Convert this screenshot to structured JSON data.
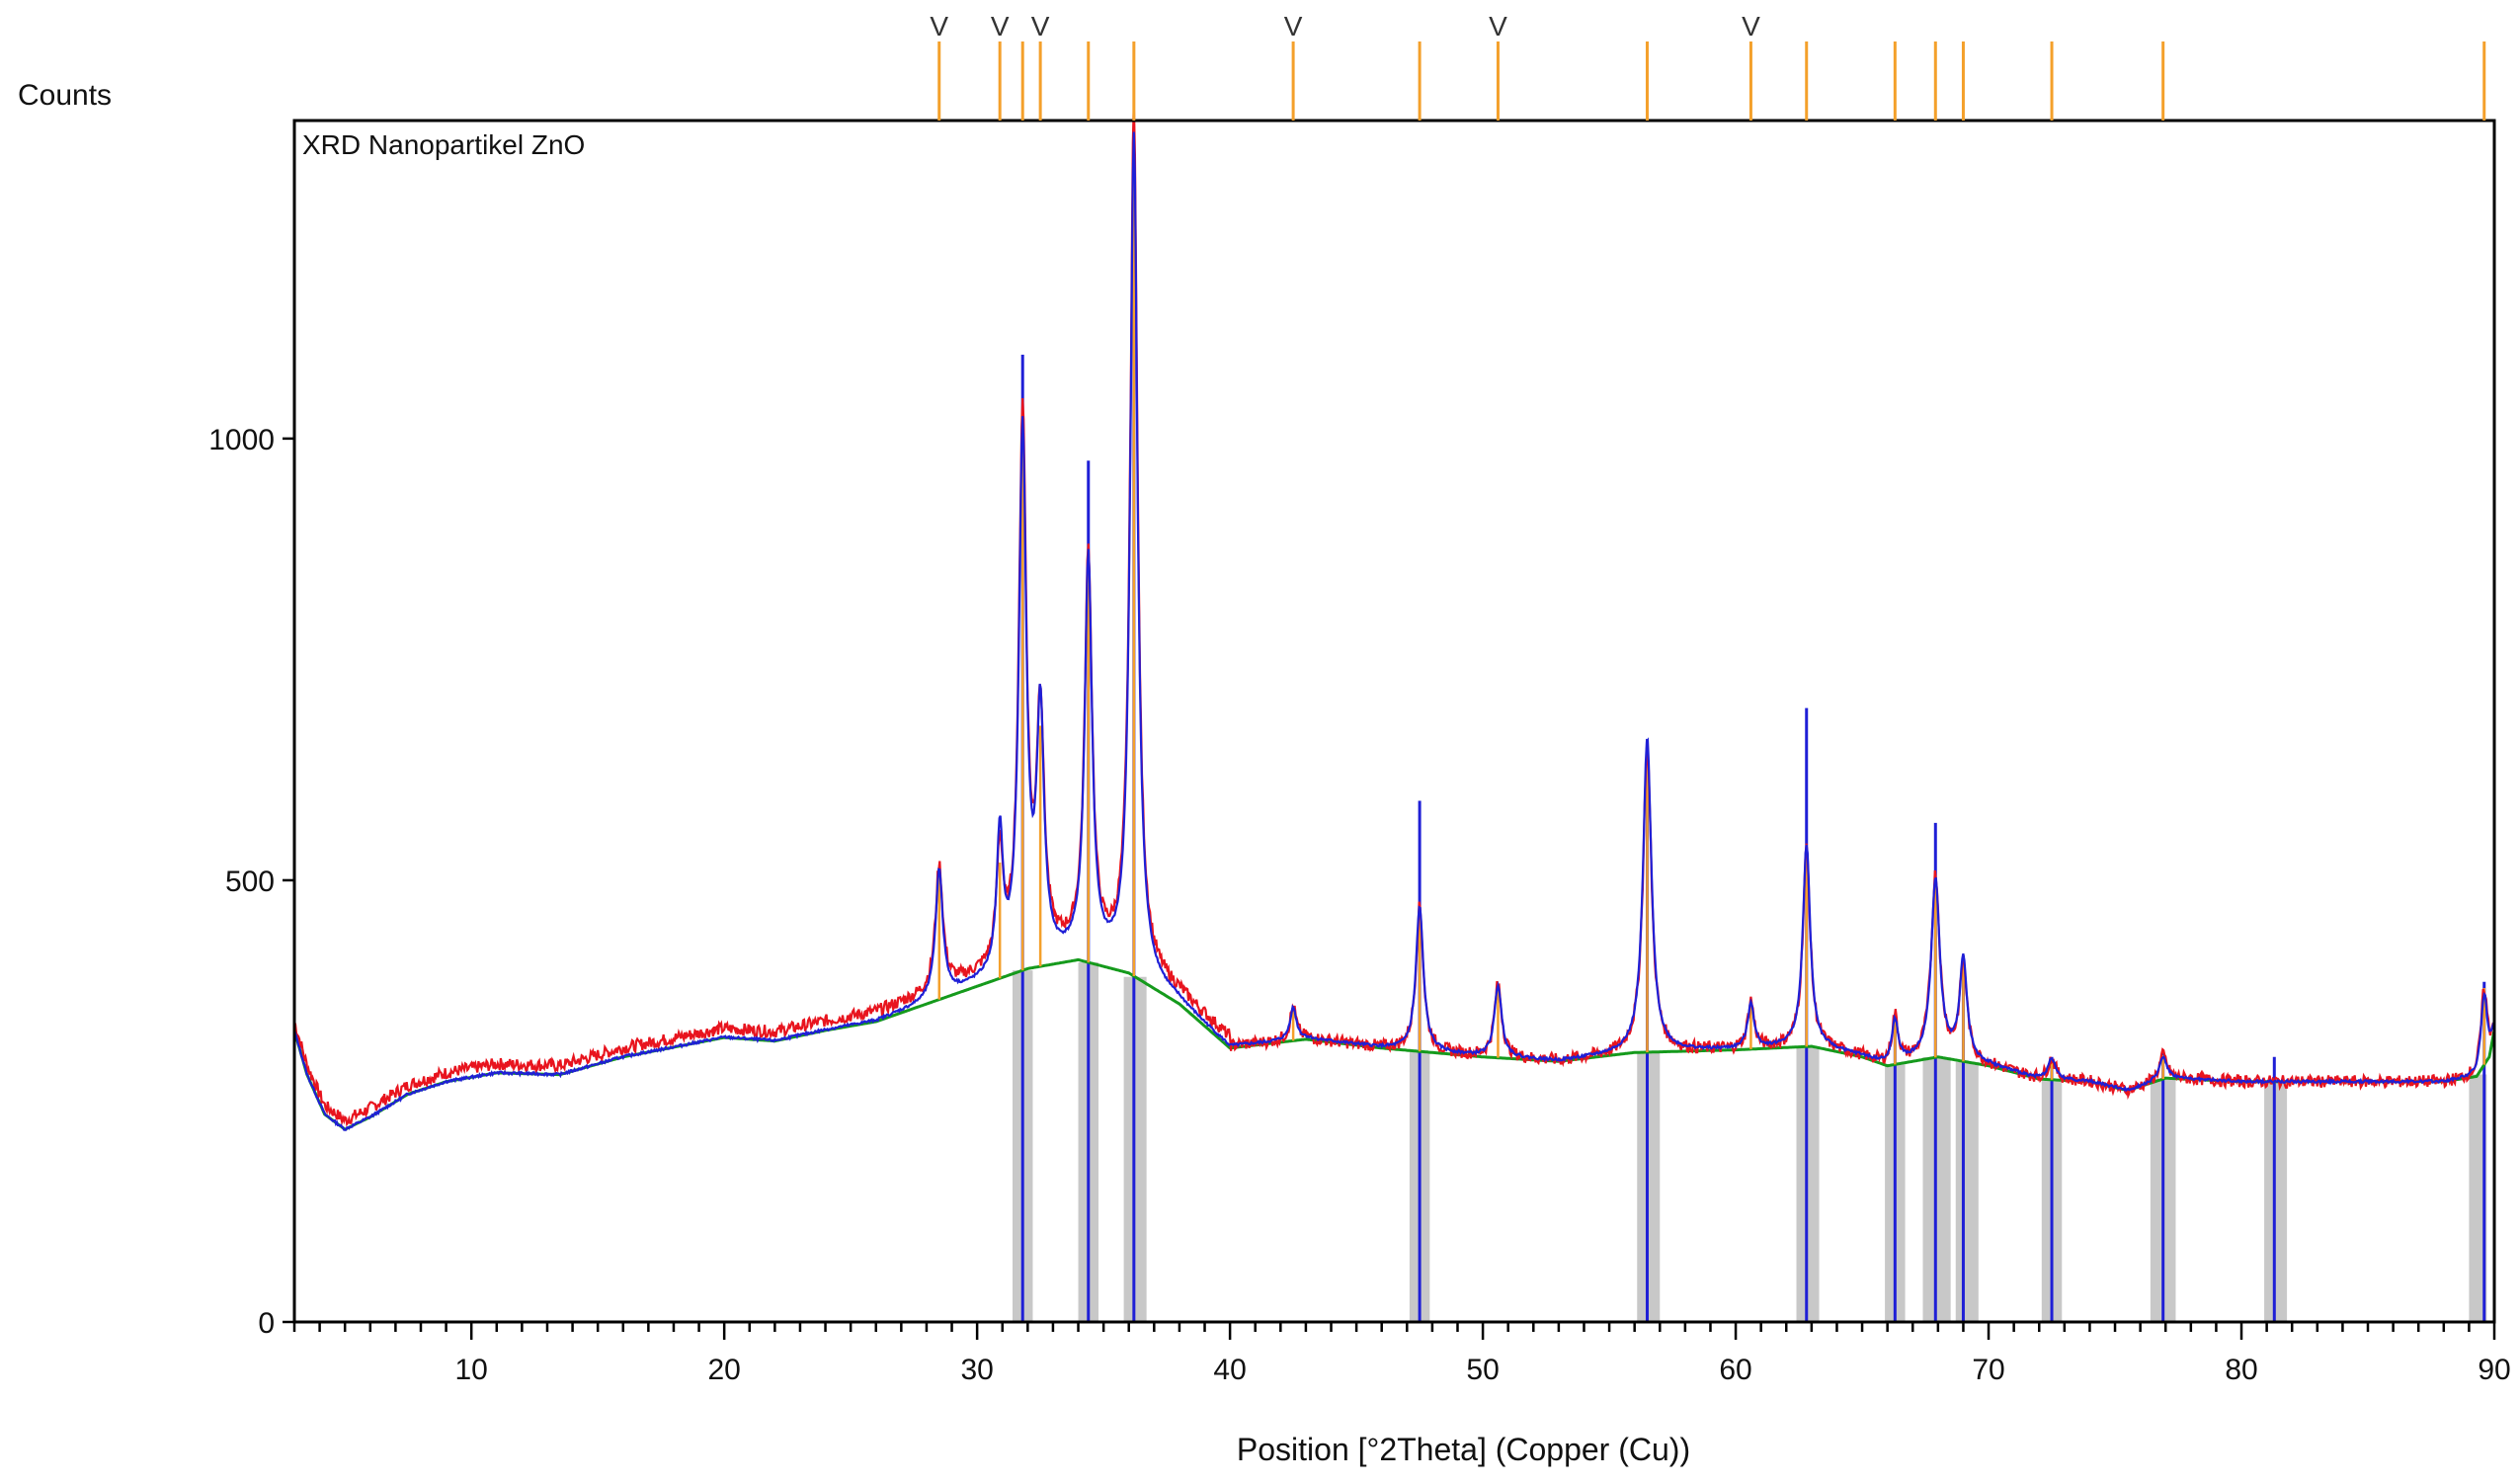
{
  "chart_data": {
    "type": "line",
    "title": "XRD Nanopartikel ZnO",
    "ylabel": "Counts",
    "xlabel": "Position [°2Theta] (Copper (Cu))",
    "xlim": [
      3,
      90
    ],
    "ylim": [
      0,
      1360
    ],
    "x_ticks": [
      10,
      20,
      30,
      40,
      50,
      60,
      70,
      80,
      90
    ],
    "y_ticks": [
      0,
      500,
      1000
    ],
    "colors": {
      "observed": "#e8141e",
      "calculated": "#1f1fd6",
      "background": "#159a1c",
      "peak_marker": "#f4a02b",
      "peak_band": "#c8c8c8",
      "reference_stick": "#1f1fd6"
    },
    "background_curve": [
      [
        3.0,
        330
      ],
      [
        3.5,
        280
      ],
      [
        4.2,
        235
      ],
      [
        5.0,
        218
      ],
      [
        6.0,
        232
      ],
      [
        7.5,
        258
      ],
      [
        9.0,
        272
      ],
      [
        11.0,
        282
      ],
      [
        13.5,
        280
      ],
      [
        16.0,
        300
      ],
      [
        20.0,
        322
      ],
      [
        22.0,
        318
      ],
      [
        24.0,
        330
      ],
      [
        26.0,
        340
      ],
      [
        28.0,
        360
      ],
      [
        30.0,
        380
      ],
      [
        32.0,
        400
      ],
      [
        34.0,
        410
      ],
      [
        36.0,
        395
      ],
      [
        38.0,
        360
      ],
      [
        40.0,
        310
      ],
      [
        43.0,
        320
      ],
      [
        46.0,
        310
      ],
      [
        50.0,
        300
      ],
      [
        53.0,
        295
      ],
      [
        56.0,
        305
      ],
      [
        60.0,
        308
      ],
      [
        63.0,
        312
      ],
      [
        65.0,
        300
      ],
      [
        66.0,
        290
      ],
      [
        68.0,
        300
      ],
      [
        70.0,
        290
      ],
      [
        72.0,
        275
      ],
      [
        74.0,
        272
      ],
      [
        75.5,
        262
      ],
      [
        77.0,
        276
      ],
      [
        80.0,
        272
      ],
      [
        85.0,
        272
      ],
      [
        88.0,
        272
      ],
      [
        89.3,
        278
      ],
      [
        89.8,
        300
      ],
      [
        90.0,
        330
      ]
    ],
    "peaks": [
      {
        "pos": 28.5,
        "observed": 505,
        "calculated": 510,
        "width": 0.35
      },
      {
        "pos": 30.9,
        "observed": 520,
        "calculated": 545,
        "width": 0.3
      },
      {
        "pos": 31.8,
        "observed": 1015,
        "calculated": 1000,
        "width": 0.35
      },
      {
        "pos": 32.5,
        "observed": 675,
        "calculated": 680,
        "width": 0.35
      },
      {
        "pos": 34.4,
        "observed": 855,
        "calculated": 860,
        "width": 0.35
      },
      {
        "pos": 36.2,
        "observed": 1360,
        "calculated": 1340,
        "width": 0.35
      },
      {
        "pos": 42.5,
        "observed": 355,
        "calculated": 355,
        "width": 0.3
      },
      {
        "pos": 47.5,
        "observed": 470,
        "calculated": 470,
        "width": 0.35
      },
      {
        "pos": 50.6,
        "observed": 382,
        "calculated": 380,
        "width": 0.35
      },
      {
        "pos": 56.5,
        "observed": 650,
        "calculated": 660,
        "width": 0.4
      },
      {
        "pos": 60.6,
        "observed": 362,
        "calculated": 360,
        "width": 0.3
      },
      {
        "pos": 62.8,
        "observed": 535,
        "calculated": 540,
        "width": 0.35
      },
      {
        "pos": 66.3,
        "observed": 345,
        "calculated": 340,
        "width": 0.3
      },
      {
        "pos": 67.9,
        "observed": 505,
        "calculated": 500,
        "width": 0.4
      },
      {
        "pos": 69.0,
        "observed": 405,
        "calculated": 410,
        "width": 0.35
      },
      {
        "pos": 72.5,
        "observed": 298,
        "calculated": 298,
        "width": 0.35
      },
      {
        "pos": 76.9,
        "observed": 302,
        "calculated": 300,
        "width": 0.35
      },
      {
        "pos": 89.6,
        "observed": 378,
        "calculated": 372,
        "width": 0.3
      }
    ],
    "reference_sticks": [
      {
        "pos": 31.8,
        "intensity": 1095
      },
      {
        "pos": 34.4,
        "intensity": 975
      },
      {
        "pos": 36.2,
        "intensity": 1330
      },
      {
        "pos": 47.5,
        "intensity": 590
      },
      {
        "pos": 56.5,
        "intensity": 660
      },
      {
        "pos": 62.8,
        "intensity": 695
      },
      {
        "pos": 66.3,
        "intensity": 345
      },
      {
        "pos": 67.9,
        "intensity": 565
      },
      {
        "pos": 69.0,
        "intensity": 415
      },
      {
        "pos": 72.5,
        "intensity": 300
      },
      {
        "pos": 76.9,
        "intensity": 305
      },
      {
        "pos": 81.3,
        "intensity": 300
      },
      {
        "pos": 89.6,
        "intensity": 385
      }
    ],
    "peak_bands": [
      [
        31.4,
        32.2
      ],
      [
        34.0,
        34.8
      ],
      [
        35.8,
        36.7
      ],
      [
        47.1,
        47.9
      ],
      [
        56.1,
        57.0
      ],
      [
        62.4,
        63.3
      ],
      [
        65.9,
        66.7
      ],
      [
        67.4,
        68.5
      ],
      [
        68.7,
        69.6
      ],
      [
        72.1,
        72.9
      ],
      [
        76.4,
        77.4
      ],
      [
        80.9,
        81.8
      ],
      [
        89.0,
        89.7
      ]
    ],
    "top_markers": [
      28.5,
      30.9,
      31.8,
      32.5,
      34.4,
      36.2,
      42.5,
      47.5,
      50.6,
      56.5,
      60.6,
      62.8,
      66.3,
      67.9,
      69.0,
      72.5,
      76.9,
      89.6
    ],
    "v_markers": [
      {
        "pos": 28.5,
        "symbol": "V"
      },
      {
        "pos": 30.9,
        "symbol": "V"
      },
      {
        "pos": 32.5,
        "symbol": "V"
      },
      {
        "pos": 42.5,
        "symbol": "V"
      },
      {
        "pos": 50.6,
        "symbol": "V"
      },
      {
        "pos": 60.6,
        "symbol": "V"
      }
    ]
  }
}
